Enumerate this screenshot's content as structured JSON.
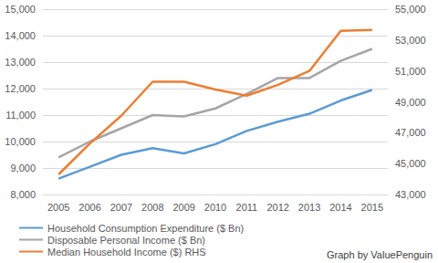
{
  "chart_data": {
    "type": "line",
    "annotation": "Graph by ValuePenguin",
    "categories": [
      "2005",
      "2006",
      "2007",
      "2008",
      "2009",
      "2010",
      "2011",
      "2012",
      "2013",
      "2014",
      "2015"
    ],
    "series": [
      {
        "name": "Household Consumption Expenditure ($ Bn)",
        "color": "#5b9bd5",
        "values": [
          8600,
          9050,
          9500,
          9750,
          9550,
          9900,
          10400,
          10750,
          11050,
          11550,
          11950
        ]
      },
      {
        "name": "Disposable Personal Income ($ Bn)",
        "color": "#a5a5a5",
        "values": [
          9400,
          10000,
          10500,
          11000,
          10950,
          11250,
          11800,
          12400,
          12400,
          13050,
          13500
        ]
      },
      {
        "name": "Median Household Income ($) RHS",
        "color": "#ed7d31",
        "axis": "y2",
        "values": [
          44300,
          46300,
          48100,
          50300,
          50300,
          49800,
          49400,
          50100,
          51000,
          53600,
          53650
        ]
      }
    ],
    "ylim": [
      8000,
      15000
    ],
    "yticks": [
      {
        "value": 8000,
        "label": "8,000"
      },
      {
        "value": 9000,
        "label": "9,000"
      },
      {
        "value": 10000,
        "label": "10,000"
      },
      {
        "value": 11000,
        "label": "11,000"
      },
      {
        "value": 12000,
        "label": "12,000"
      },
      {
        "value": 13000,
        "label": "13,000"
      },
      {
        "value": 14000,
        "label": "14,000"
      },
      {
        "value": 15000,
        "label": "15,000"
      }
    ],
    "y2lim": [
      43000,
      55000
    ],
    "y2ticks": [
      {
        "value": 43000,
        "label": "43,000"
      },
      {
        "value": 45000,
        "label": "45,000"
      },
      {
        "value": 47000,
        "label": "47,000"
      },
      {
        "value": 49000,
        "label": "49,000"
      },
      {
        "value": 51000,
        "label": "51,000"
      },
      {
        "value": 53000,
        "label": "53,000"
      },
      {
        "value": 55000,
        "label": "55,000"
      }
    ],
    "grid": true,
    "legend": "bottom"
  }
}
